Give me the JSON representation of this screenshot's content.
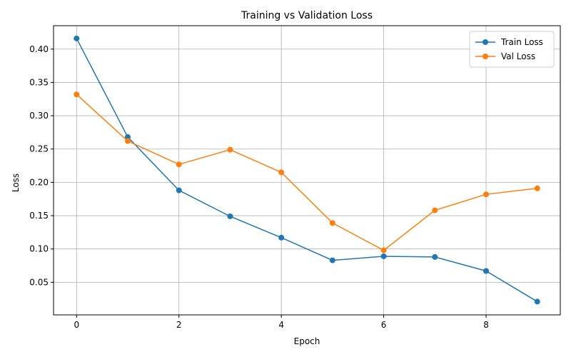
{
  "chart_data": {
    "type": "line",
    "title": "Training vs Validation Loss",
    "xlabel": "Epoch",
    "ylabel": "Loss",
    "xlim": [
      -0.45,
      9.45
    ],
    "ylim": [
      0.0011,
      0.4351
    ],
    "xticks": [
      0,
      2,
      4,
      6,
      8
    ],
    "yticks": [
      0.05,
      0.1,
      0.15,
      0.2,
      0.25,
      0.3,
      0.35,
      0.4
    ],
    "grid": true,
    "legend_position": "top-right",
    "x": [
      0,
      1,
      2,
      3,
      4,
      5,
      6,
      7,
      8,
      9
    ],
    "series": [
      {
        "name": "Train Loss",
        "color": "#1f77b4",
        "values": [
          0.416,
          0.268,
          0.188,
          0.149,
          0.117,
          0.083,
          0.089,
          0.088,
          0.067,
          0.021
        ]
      },
      {
        "name": "Val Loss",
        "color": "#ff7f0e",
        "values": [
          0.332,
          0.262,
          0.227,
          0.249,
          0.215,
          0.139,
          0.098,
          0.158,
          0.182,
          0.191
        ]
      }
    ]
  }
}
